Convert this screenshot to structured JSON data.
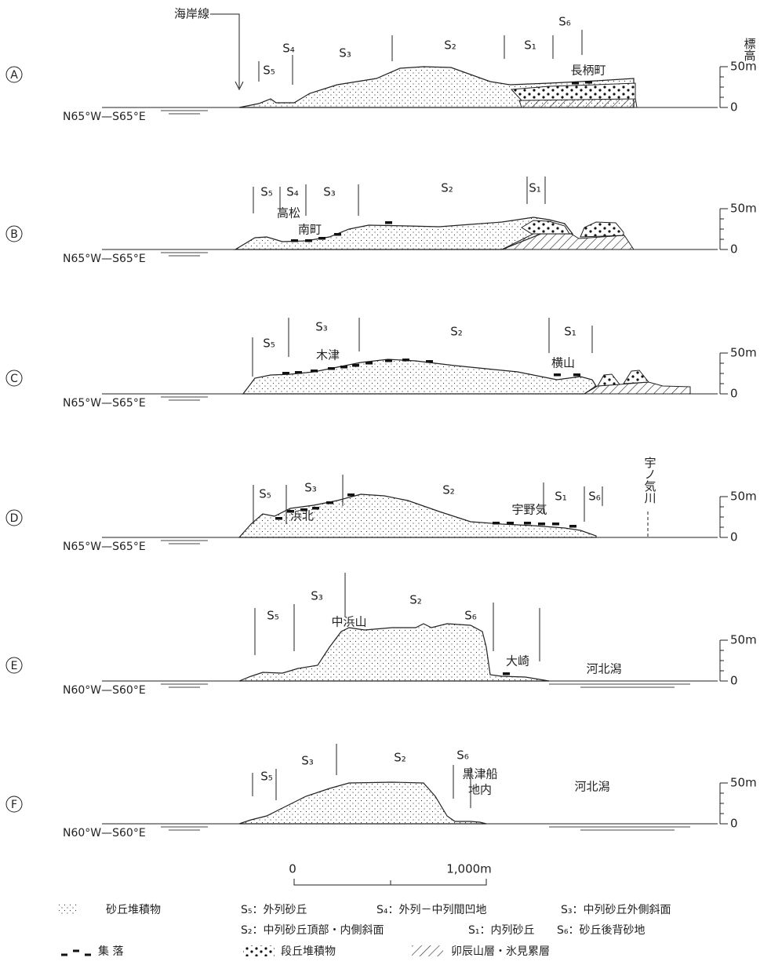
{
  "coastline_label": "海岸線",
  "elevation_label": "標高",
  "profiles": [
    {
      "id": "A",
      "direction": "N65°W—S65°E",
      "axis_top": "50m",
      "axis_bottom": "0",
      "zones": [
        "S₅",
        "S₄",
        "S₃",
        "S₂",
        "S₁",
        "S₆"
      ],
      "places": [
        "長柄町"
      ]
    },
    {
      "id": "B",
      "direction": "N65°W—S65°E",
      "axis_top": "50m",
      "axis_bottom": "0",
      "zones": [
        "S₅",
        "S₄",
        "S₃",
        "S₂",
        "S₁"
      ],
      "places": [
        "高松",
        "南町"
      ]
    },
    {
      "id": "C",
      "direction": "N65°W—S65°E",
      "axis_top": "50m",
      "axis_bottom": "0",
      "zones": [
        "S₅",
        "S₃",
        "S₂",
        "S₁"
      ],
      "places": [
        "木津",
        "横山"
      ]
    },
    {
      "id": "D",
      "direction": "N65°W—S65°E",
      "axis_top": "50m",
      "axis_bottom": "0",
      "zones": [
        "S₅",
        "S₃",
        "S₂",
        "S₁",
        "S₆"
      ],
      "places": [
        "浜北",
        "宇野気",
        "宇ノ気川"
      ]
    },
    {
      "id": "E",
      "direction": "N60°W—S60°E",
      "axis_top": "50m",
      "axis_bottom": "0",
      "zones": [
        "S₅",
        "S₃",
        "S₂",
        "S₆"
      ],
      "places": [
        "中浜山",
        "大崎",
        "河北潟"
      ]
    },
    {
      "id": "F",
      "direction": "N60°W—S60°E",
      "axis_top": "50m",
      "axis_bottom": "0",
      "zones": [
        "S₅",
        "S₃",
        "S₂",
        "S₆"
      ],
      "places": [
        "黒津船",
        "地内",
        "河北潟"
      ]
    }
  ],
  "scale_bar": {
    "start": "0",
    "end": "1,000m"
  },
  "legend": {
    "sand": "砂丘堆積物",
    "s5": "S₅：外列砂丘",
    "s4": "S₄：外列－中列間凹地",
    "s3": "S₃：中列砂丘外側斜面",
    "s2": "S₂：中列砂丘頂部・内側斜面",
    "s1": "S₁：内列砂丘",
    "s6": "S₆：砂丘後背砂地",
    "settlement": "集 落",
    "terrace": "段丘堆積物",
    "bedrock": "卯辰山層・氷見累層"
  }
}
